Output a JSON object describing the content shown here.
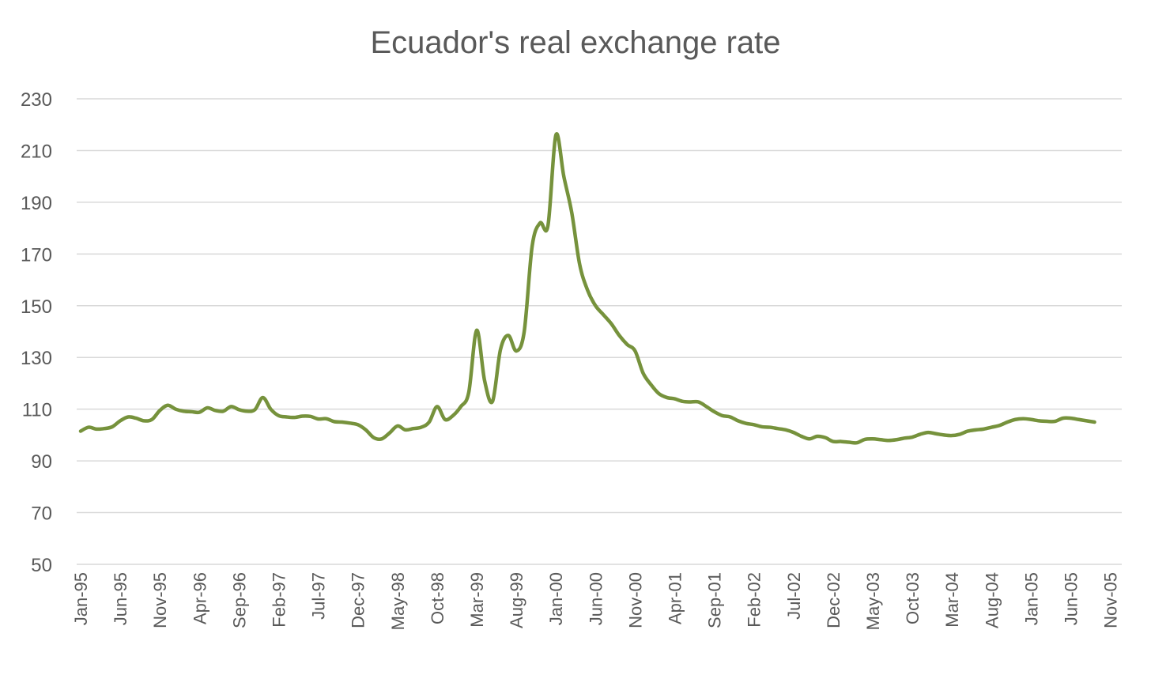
{
  "chart_data": {
    "type": "line",
    "title": "Ecuador's real exchange rate",
    "xlabel": "",
    "ylabel": "",
    "ylim": [
      50,
      230
    ],
    "yticks": [
      50,
      70,
      90,
      110,
      130,
      150,
      170,
      190,
      210,
      230
    ],
    "grid": "horizontal",
    "line_color": "#76923C",
    "grid_color": "#D9D9D9",
    "text_color": "#595959",
    "x_tick_labels": [
      "Jan-95",
      "Jun-95",
      "Nov-95",
      "Apr-96",
      "Sep-96",
      "Feb-97",
      "Jul-97",
      "Dec-97",
      "May-98",
      "Oct-98",
      "Mar-99",
      "Aug-99",
      "Jan-00",
      "Jun-00",
      "Nov-00",
      "Apr-01",
      "Sep-01",
      "Feb-02",
      "Jul-02",
      "Dec-02",
      "May-03",
      "Oct-03",
      "Mar-04",
      "Aug-04",
      "Jan-05",
      "Jun-05",
      "Nov-05"
    ],
    "series": [
      {
        "start": "Jan-95",
        "frequency": "monthly",
        "values": [
          101.5,
          103,
          102.3,
          102.5,
          103.2,
          105.5,
          107,
          106.5,
          105.5,
          106,
          109.5,
          111.5,
          110,
          109.2,
          109,
          108.8,
          110.5,
          109.5,
          109.2,
          111,
          109.8,
          109.2,
          109.8,
          114.5,
          110,
          107.5,
          107,
          106.8,
          107.3,
          107.2,
          106.2,
          106.3,
          105.2,
          105,
          104.6,
          104,
          102,
          99,
          98.5,
          100.8,
          103.5,
          102,
          102.5,
          103,
          105,
          111,
          106,
          107.5,
          111,
          116.5,
          140.5,
          121,
          113,
          133,
          138.5,
          132.5,
          140,
          173,
          182,
          181,
          216,
          200,
          186,
          166,
          156,
          150,
          146.5,
          143,
          138.5,
          135,
          132.5,
          124,
          119.5,
          116,
          114.5,
          114,
          113,
          112.8,
          112.8,
          111,
          109,
          107.5,
          107,
          105.5,
          104.5,
          104,
          103.2,
          103,
          102.5,
          102,
          101,
          99.5,
          98.5,
          99.5,
          99,
          97.5,
          97.5,
          97.2,
          97,
          98.3,
          98.5,
          98.2,
          97.9,
          98.2,
          98.8,
          99.2,
          100.3,
          101,
          100.5,
          100,
          99.8,
          100.3,
          101.5,
          102,
          102.3,
          103,
          103.7,
          105,
          106,
          106.3,
          106,
          105.5,
          105.3,
          105.3,
          106.5,
          106.5,
          106,
          105.5,
          105
        ]
      }
    ]
  }
}
